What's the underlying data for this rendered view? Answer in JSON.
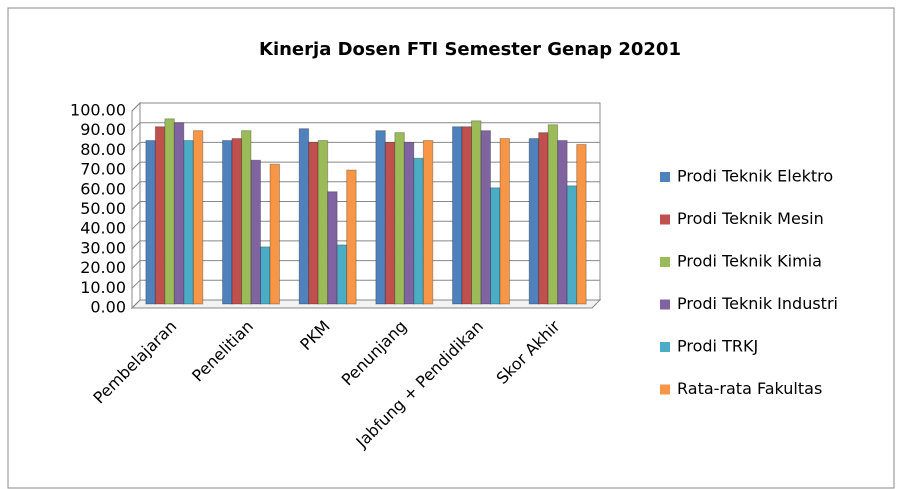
{
  "chart_data": {
    "type": "bar",
    "title": "Kinerja Dosen FTI Semester Genap 20201",
    "categories": [
      "Pembelajaran",
      "Penelitian",
      "PKM",
      "Penunjang",
      "Jabfung + Pendidikan",
      "Skor Akhir"
    ],
    "series": [
      {
        "name": "Prodi Teknik Elektro",
        "color": "#4f81bd",
        "values": [
          83,
          83,
          89,
          88,
          90,
          84
        ]
      },
      {
        "name": "Prodi Teknik Mesin",
        "color": "#c0504d",
        "values": [
          90,
          84,
          82,
          82,
          90,
          87
        ]
      },
      {
        "name": "Prodi Teknik Kimia",
        "color": "#9bbb59",
        "values": [
          94,
          88,
          83,
          87,
          93,
          91
        ]
      },
      {
        "name": "Prodi Teknik Industri",
        "color": "#8064a2",
        "values": [
          92,
          73,
          57,
          82,
          88,
          83
        ]
      },
      {
        "name": "Prodi TRKJ",
        "color": "#4bacc6",
        "values": [
          83,
          29,
          30,
          74,
          59,
          60
        ]
      },
      {
        "name": "Rata-rata Fakultas",
        "color": "#f79646",
        "values": [
          88,
          71,
          68,
          83,
          84,
          81
        ]
      }
    ],
    "ylim": [
      0,
      100
    ],
    "yticks": [
      {
        "value": 0,
        "label": "0.00"
      },
      {
        "value": 10,
        "label": "10.00"
      },
      {
        "value": 20,
        "label": "20.00"
      },
      {
        "value": 30,
        "label": "30.00"
      },
      {
        "value": 40,
        "label": "40.00"
      },
      {
        "value": 50,
        "label": "50.00"
      },
      {
        "value": 60,
        "label": "60.00"
      },
      {
        "value": 70,
        "label": "70.00"
      },
      {
        "value": 80,
        "label": "80.00"
      },
      {
        "value": 90,
        "label": "90.00"
      },
      {
        "value": 100,
        "label": "100.00"
      }
    ],
    "grid": true,
    "legend": "right"
  }
}
